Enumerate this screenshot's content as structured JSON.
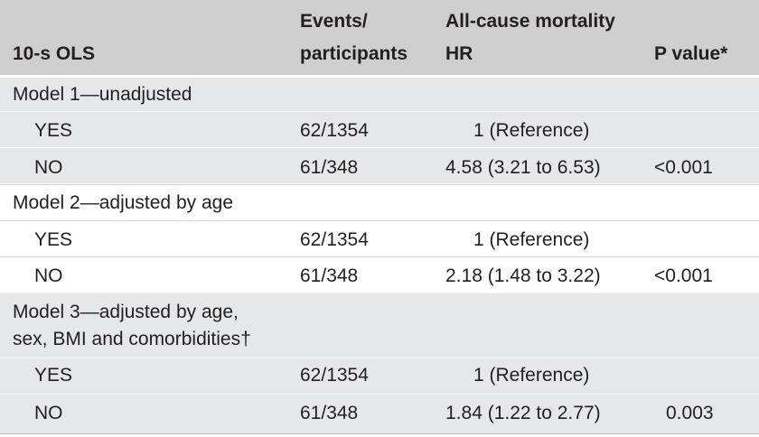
{
  "header": {
    "col1": "10-s OLS",
    "col2_line1": "Events/",
    "col2_line2": "participants",
    "col3_line1": "All-cause mortality",
    "col3_line2": "HR",
    "col4": "P value*"
  },
  "models": [
    {
      "label_line1": "Model 1—unadjusted",
      "label_line2": "",
      "rows": [
        {
          "group": "YES",
          "events": "62/1354",
          "hr": "1 (Reference)",
          "p": ""
        },
        {
          "group": "NO",
          "events": "61/348",
          "hr": "4.58 (3.21 to 6.53)",
          "p": "<0.001"
        }
      ]
    },
    {
      "label_line1": "Model 2—adjusted by age",
      "label_line2": "",
      "rows": [
        {
          "group": "YES",
          "events": "62/1354",
          "hr": "1 (Reference)",
          "p": ""
        },
        {
          "group": "NO",
          "events": "61/348",
          "hr": "2.18 (1.48 to 3.22)",
          "p": "<0.001"
        }
      ]
    },
    {
      "label_line1": "Model 3—adjusted by age,",
      "label_line2": "sex, BMI and comorbidities†",
      "rows": [
        {
          "group": "YES",
          "events": "62/1354",
          "hr": "1 (Reference)",
          "p": ""
        },
        {
          "group": "NO",
          "events": "61/348",
          "hr": "1.84 (1.22 to 2.77)",
          "p": "0.003"
        }
      ]
    }
  ],
  "colors": {
    "header_bg": "#cfcfd0",
    "band_bg": "#e6e7e8",
    "text": "#231f20"
  }
}
